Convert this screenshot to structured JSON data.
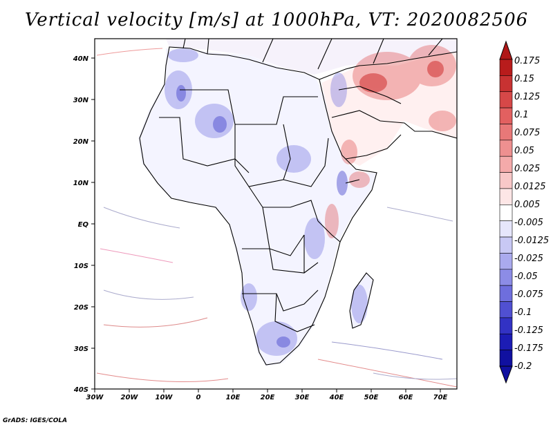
{
  "title": "Vertical velocity [m/s] at 1000hPa, VT: 2020082506",
  "credit": "GrADS: IGES/COLA",
  "map": {
    "lat_ticks": [
      "40N",
      "30N",
      "20N",
      "10N",
      "EQ",
      "10S",
      "20S",
      "30S",
      "40S"
    ],
    "lon_ticks": [
      "30W",
      "20W",
      "10W",
      "0",
      "10E",
      "20E",
      "30E",
      "40E",
      "50E",
      "60E",
      "70E"
    ],
    "lon_range": [
      -30,
      75
    ],
    "lat_range": [
      -40,
      45
    ]
  },
  "colorbar": {
    "levels": [
      "0.175",
      "0.15",
      "0.125",
      "0.1",
      "0.075",
      "0.05",
      "0.025",
      "0.0125",
      "0.005",
      "-0.005",
      "-0.0125",
      "-0.025",
      "-0.05",
      "-0.075",
      "-0.1",
      "-0.125",
      "-0.175",
      "-0.2"
    ],
    "colors": [
      "#b81c1c",
      "#c83232",
      "#d64848",
      "#e26060",
      "#e87878",
      "#ee9090",
      "#f4aaaa",
      "#f8c8c8",
      "#fde6e6",
      "#ffffff",
      "#e6e6fb",
      "#c8c8f4",
      "#aaaaee",
      "#8c8ce6",
      "#6e6edd",
      "#5050d2",
      "#3232c4",
      "#1c1cb4",
      "#1010a0"
    ],
    "top_color": "#b01818",
    "bottom_color": "#1010a0"
  }
}
